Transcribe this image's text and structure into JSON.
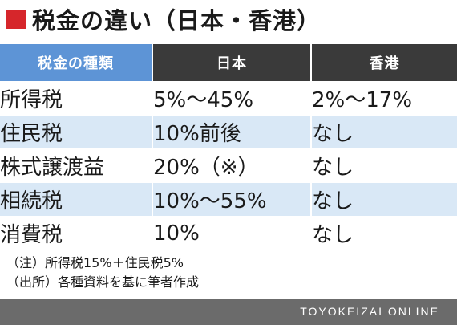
{
  "title": "税金の違い（日本・香港）",
  "colors": {
    "title_marker": "#d6262b",
    "header_category_bg": "#5d94d6",
    "header_country_bg": "#3a3a3a",
    "row_alt_bg": "#d9e8f6",
    "footer_bg": "#6b6b6b"
  },
  "table": {
    "headers": [
      "税金の種類",
      "日本",
      "香港"
    ],
    "rows": [
      {
        "name": "所得税",
        "japan": "5%〜45%",
        "hongkong": "2%〜17%"
      },
      {
        "name": "住民税",
        "japan": "10%前後",
        "hongkong": "なし"
      },
      {
        "name": "株式譲渡益",
        "japan": "20%（※）",
        "hongkong": "なし"
      },
      {
        "name": "相続税",
        "japan": "10%〜55%",
        "hongkong": "なし"
      },
      {
        "name": "消費税",
        "japan": "10%",
        "hongkong": "なし"
      }
    ]
  },
  "notes": {
    "note": "（注）所得税15%＋住民税5%",
    "source": "（出所）各種資料を基に筆者作成"
  },
  "footer": {
    "brand": "TOYOKEIZAI ONLINE"
  }
}
